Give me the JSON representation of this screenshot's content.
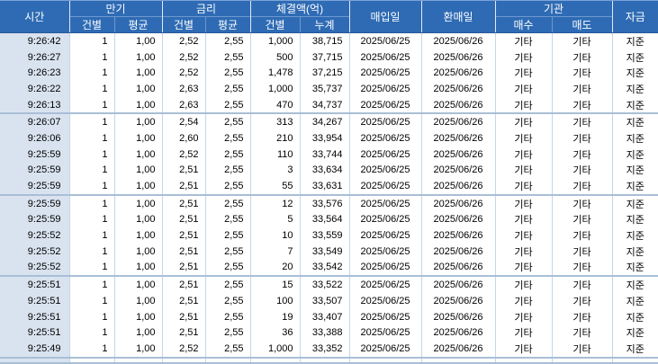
{
  "table": {
    "headers": {
      "time": "시간",
      "maturity": "만기",
      "rate": "금리",
      "amount": "체결액(억)",
      "per_case": "건별",
      "average": "평균",
      "cumulative": "누계",
      "purchase_date": "매입일",
      "repurchase_date": "환매일",
      "institution": "기관",
      "buy": "매수",
      "sell": "매도",
      "funds": "자금"
    },
    "rows": [
      [
        "9:26:42",
        "1",
        "1,00",
        "2,52",
        "2,55",
        "1,000",
        "38,715",
        "2025/06/25",
        "2025/06/26",
        "기타",
        "기타",
        "지준"
      ],
      [
        "9:26:27",
        "1",
        "1,00",
        "2,52",
        "2,55",
        "500",
        "37,715",
        "2025/06/25",
        "2025/06/26",
        "기타",
        "기타",
        "지준"
      ],
      [
        "9:26:23",
        "1",
        "1,00",
        "2,52",
        "2,55",
        "1,478",
        "37,215",
        "2025/06/25",
        "2025/06/26",
        "기타",
        "기타",
        "지준"
      ],
      [
        "9:26:22",
        "1",
        "1,00",
        "2,63",
        "2,55",
        "1,000",
        "35,737",
        "2025/06/25",
        "2025/06/26",
        "기타",
        "기타",
        "지준"
      ],
      [
        "9:26:13",
        "1",
        "1,00",
        "2,63",
        "2,55",
        "470",
        "34,737",
        "2025/06/25",
        "2025/06/26",
        "기타",
        "기타",
        "지준"
      ],
      [
        "9:26:07",
        "1",
        "1,00",
        "2,54",
        "2,55",
        "313",
        "34,267",
        "2025/06/25",
        "2025/06/26",
        "기타",
        "기타",
        "지준"
      ],
      [
        "9:26:06",
        "1",
        "1,00",
        "2,60",
        "2,55",
        "210",
        "33,954",
        "2025/06/25",
        "2025/06/26",
        "기타",
        "기타",
        "지준"
      ],
      [
        "9:25:59",
        "1",
        "1,00",
        "2,52",
        "2,55",
        "110",
        "33,744",
        "2025/06/25",
        "2025/06/26",
        "기타",
        "기타",
        "지준"
      ],
      [
        "9:25:59",
        "1",
        "1,00",
        "2,51",
        "2,55",
        "3",
        "33,634",
        "2025/06/25",
        "2025/06/26",
        "기타",
        "기타",
        "지준"
      ],
      [
        "9:25:59",
        "1",
        "1,00",
        "2,51",
        "2,55",
        "55",
        "33,631",
        "2025/06/25",
        "2025/06/26",
        "기타",
        "기타",
        "지준"
      ],
      [
        "9:25:59",
        "1",
        "1,00",
        "2,51",
        "2,55",
        "12",
        "33,576",
        "2025/06/25",
        "2025/06/26",
        "기타",
        "기타",
        "지준"
      ],
      [
        "9:25:59",
        "1",
        "1,00",
        "2,51",
        "2,55",
        "5",
        "33,564",
        "2025/06/25",
        "2025/06/26",
        "기타",
        "기타",
        "지준"
      ],
      [
        "9:25:52",
        "1",
        "1,00",
        "2,51",
        "2,55",
        "10",
        "33,559",
        "2025/06/25",
        "2025/06/26",
        "기타",
        "기타",
        "지준"
      ],
      [
        "9:25:52",
        "1",
        "1,00",
        "2,51",
        "2,55",
        "7",
        "33,549",
        "2025/06/25",
        "2025/06/26",
        "기타",
        "기타",
        "지준"
      ],
      [
        "9:25:52",
        "1",
        "1,00",
        "2,51",
        "2,55",
        "20",
        "33,542",
        "2025/06/25",
        "2025/06/26",
        "기타",
        "기타",
        "지준"
      ],
      [
        "9:25:51",
        "1",
        "1,00",
        "2,51",
        "2,55",
        "15",
        "33,522",
        "2025/06/25",
        "2025/06/26",
        "기타",
        "기타",
        "지준"
      ],
      [
        "9:25:51",
        "1",
        "1,00",
        "2,51",
        "2,55",
        "100",
        "33,507",
        "2025/06/25",
        "2025/06/26",
        "기타",
        "기타",
        "지준"
      ],
      [
        "9:25:51",
        "1",
        "1,00",
        "2,51",
        "2,55",
        "19",
        "33,407",
        "2025/06/25",
        "2025/06/26",
        "기타",
        "기타",
        "지준"
      ],
      [
        "9:25:51",
        "1",
        "1,00",
        "2,51",
        "2,55",
        "36",
        "33,388",
        "2025/06/25",
        "2025/06/26",
        "기타",
        "기타",
        "지준"
      ],
      [
        "9:25:49",
        "1",
        "1,00",
        "2,52",
        "2,55",
        "1,000",
        "33,352",
        "2025/06/25",
        "2025/06/26",
        "기타",
        "기타",
        "지준"
      ]
    ],
    "column_keys": [
      "time",
      "maturity_each",
      "maturity_avg",
      "rate_each",
      "rate_avg",
      "amount_each",
      "amount_cumulative",
      "purchase_date",
      "repurchase_date",
      "institution_buy",
      "institution_sell",
      "funds"
    ],
    "group_row_span": 5
  },
  "colors": {
    "header_bg": "#2e6bb4",
    "header_text": "#ffffff",
    "time_column_bg": "#d9e3ef",
    "grid_line": "#c4d6e7",
    "group_separator": "#a9bfd6"
  }
}
